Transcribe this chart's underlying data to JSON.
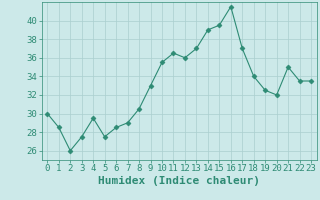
{
  "x": [
    0,
    1,
    2,
    3,
    4,
    5,
    6,
    7,
    8,
    9,
    10,
    11,
    12,
    13,
    14,
    15,
    16,
    17,
    18,
    19,
    20,
    21,
    22,
    23
  ],
  "y": [
    30,
    28.5,
    26,
    27.5,
    29.5,
    27.5,
    28.5,
    29,
    30.5,
    33,
    35.5,
    36.5,
    36,
    37,
    39,
    39.5,
    41.5,
    37,
    34,
    32.5,
    32,
    35,
    33.5,
    33.5
  ],
  "line_color": "#2e8b74",
  "marker": "D",
  "marker_size": 2.5,
  "background_color": "#cce9e9",
  "grid_color": "#aacfcf",
  "xlabel": "Humidex (Indice chaleur)",
  "xlim": [
    -0.5,
    23.5
  ],
  "ylim": [
    25,
    42
  ],
  "yticks": [
    26,
    28,
    30,
    32,
    34,
    36,
    38,
    40
  ],
  "xticks": [
    0,
    1,
    2,
    3,
    4,
    5,
    6,
    7,
    8,
    9,
    10,
    11,
    12,
    13,
    14,
    15,
    16,
    17,
    18,
    19,
    20,
    21,
    22,
    23
  ],
  "tick_color": "#2e8b74",
  "xlabel_color": "#2e8b74",
  "xlabel_fontsize": 8,
  "tick_fontsize": 6.5,
  "line_width": 0.8
}
